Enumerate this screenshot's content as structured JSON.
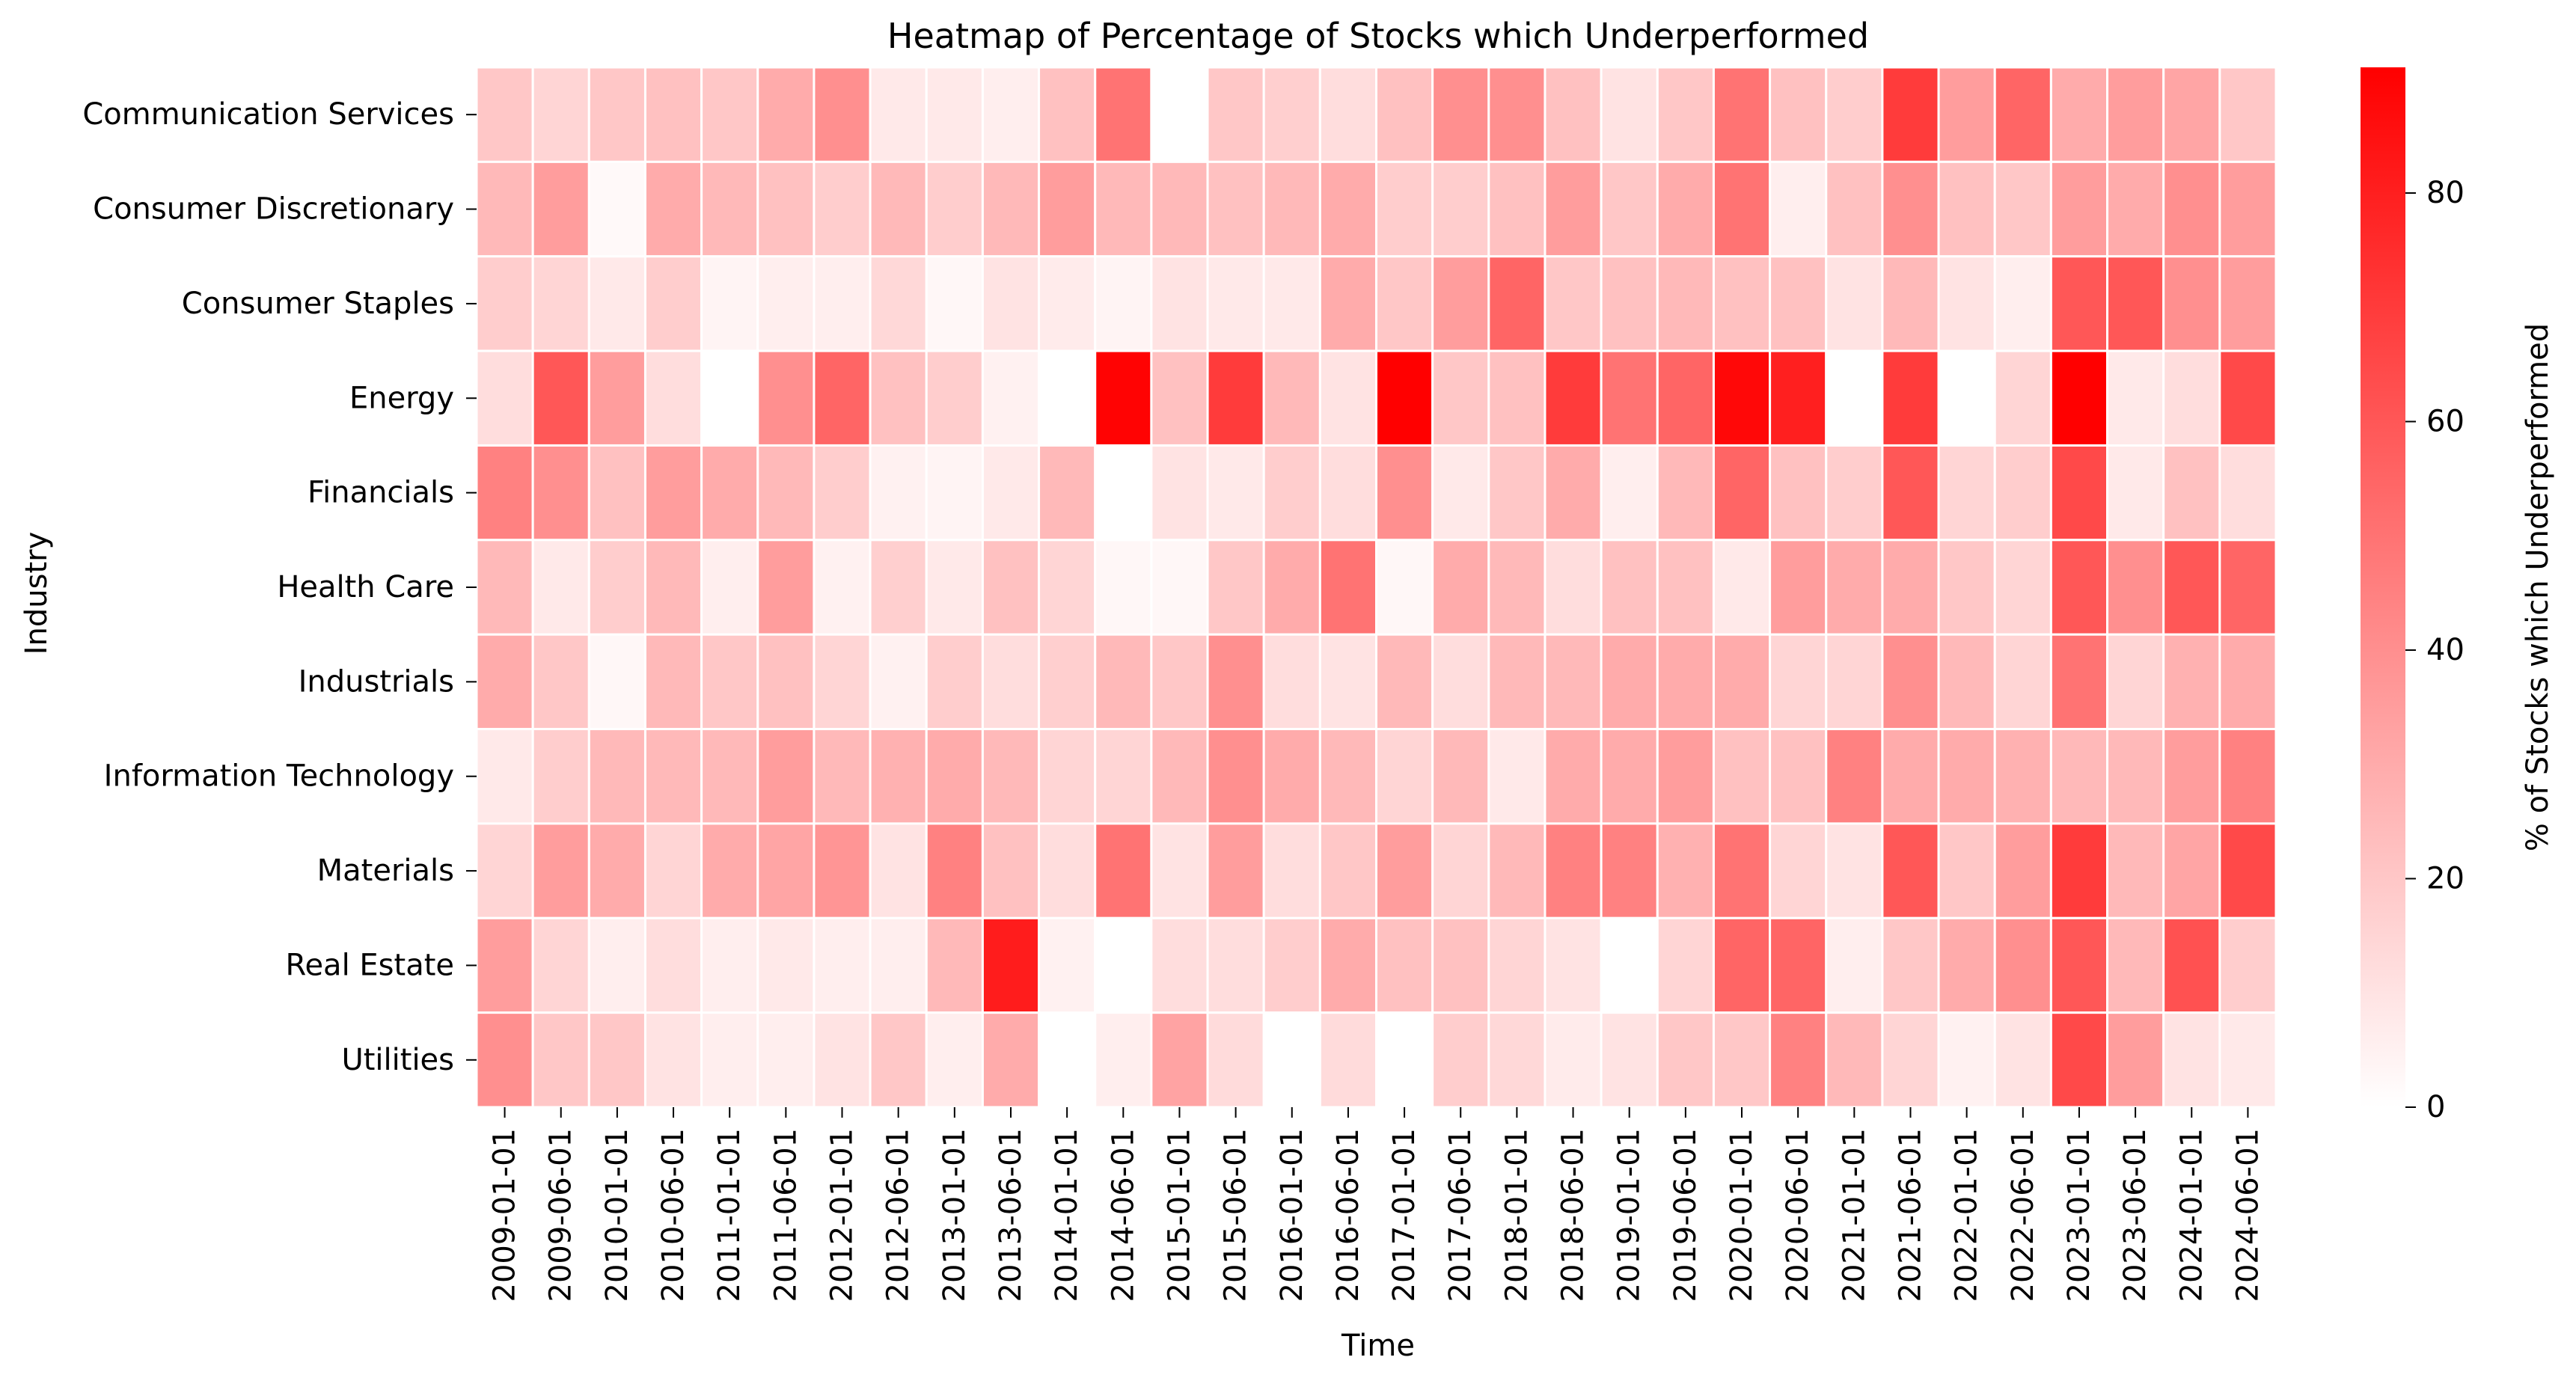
{
  "chart_data": {
    "type": "heatmap",
    "title": "Heatmap of Percentage of Stocks which Underperformed",
    "xlabel": "Time",
    "ylabel": "Industry",
    "colorbar_label": "% of Stocks which Underperformed",
    "colorbar_ticks": [
      0,
      20,
      40,
      60,
      80
    ],
    "vmin": 0,
    "vmax": 91,
    "colors": {
      "low": "#ffffff",
      "high": "#ff0000",
      "grid": "#ffffff",
      "text": "#000000"
    },
    "x": [
      "2009-01-01",
      "2009-06-01",
      "2010-01-01",
      "2010-06-01",
      "2011-01-01",
      "2011-06-01",
      "2012-01-01",
      "2012-06-01",
      "2013-01-01",
      "2013-06-01",
      "2014-01-01",
      "2014-06-01",
      "2015-01-01",
      "2015-06-01",
      "2016-01-01",
      "2016-06-01",
      "2017-01-01",
      "2017-06-01",
      "2018-01-01",
      "2018-06-01",
      "2019-01-01",
      "2019-06-01",
      "2020-01-01",
      "2020-06-01",
      "2021-01-01",
      "2021-06-01",
      "2022-01-01",
      "2022-06-01",
      "2023-01-01",
      "2023-06-01",
      "2024-01-01",
      "2024-06-01"
    ],
    "y": [
      "Communication Services",
      "Consumer Discretionary",
      "Consumer Staples",
      "Energy",
      "Financials",
      "Health Care",
      "Industrials",
      "Information Technology",
      "Materials",
      "Real Estate",
      "Utilities"
    ],
    "values": [
      [
        20,
        15,
        20,
        22,
        20,
        30,
        40,
        8,
        8,
        6,
        22,
        50,
        0,
        20,
        17,
        12,
        22,
        40,
        40,
        22,
        10,
        20,
        50,
        22,
        18,
        70,
        35,
        55,
        30,
        35,
        32,
        20
      ],
      [
        25,
        35,
        2,
        30,
        25,
        22,
        18,
        25,
        18,
        25,
        35,
        25,
        25,
        22,
        25,
        30,
        18,
        18,
        22,
        35,
        20,
        30,
        50,
        6,
        22,
        40,
        22,
        20,
        35,
        30,
        40,
        35
      ],
      [
        18,
        15,
        8,
        18,
        4,
        6,
        6,
        14,
        3,
        10,
        7,
        4,
        10,
        8,
        8,
        30,
        20,
        35,
        55,
        20,
        22,
        25,
        22,
        22,
        10,
        25,
        10,
        6,
        60,
        60,
        40,
        35
      ],
      [
        12,
        60,
        35,
        12,
        0,
        40,
        55,
        22,
        18,
        5,
        0,
        90,
        22,
        70,
        25,
        10,
        91,
        20,
        22,
        70,
        50,
        55,
        88,
        80,
        0,
        70,
        0,
        15,
        91,
        8,
        12,
        65
      ],
      [
        45,
        40,
        22,
        35,
        30,
        25,
        18,
        5,
        4,
        8,
        25,
        0,
        10,
        8,
        18,
        12,
        40,
        8,
        20,
        30,
        6,
        25,
        55,
        22,
        18,
        60,
        15,
        18,
        65,
        8,
        22,
        12
      ],
      [
        25,
        8,
        18,
        25,
        6,
        35,
        5,
        17,
        8,
        22,
        15,
        3,
        3,
        20,
        30,
        50,
        3,
        30,
        25,
        12,
        22,
        22,
        8,
        35,
        30,
        30,
        20,
        15,
        60,
        40,
        60,
        55
      ],
      [
        30,
        20,
        3,
        25,
        20,
        22,
        15,
        5,
        18,
        12,
        17,
        25,
        20,
        40,
        12,
        10,
        25,
        12,
        25,
        25,
        30,
        30,
        30,
        15,
        15,
        40,
        25,
        15,
        50,
        15,
        28,
        30
      ],
      [
        8,
        18,
        25,
        25,
        25,
        35,
        25,
        28,
        30,
        25,
        15,
        15,
        25,
        40,
        30,
        25,
        15,
        25,
        8,
        30,
        30,
        35,
        22,
        22,
        45,
        30,
        30,
        28,
        25,
        25,
        35,
        45
      ],
      [
        15,
        35,
        30,
        15,
        30,
        32,
        38,
        10,
        45,
        22,
        12,
        50,
        10,
        35,
        12,
        20,
        35,
        15,
        25,
        45,
        45,
        28,
        50,
        15,
        10,
        60,
        20,
        35,
        70,
        25,
        32,
        65
      ],
      [
        35,
        15,
        6,
        12,
        6,
        8,
        6,
        6,
        25,
        81,
        5,
        0,
        12,
        12,
        18,
        30,
        22,
        22,
        15,
        10,
        0,
        15,
        55,
        55,
        6,
        20,
        30,
        40,
        60,
        25,
        62,
        18
      ],
      [
        40,
        20,
        20,
        10,
        6,
        6,
        10,
        20,
        6,
        30,
        0,
        6,
        33,
        13,
        0,
        13,
        0,
        18,
        14,
        7,
        10,
        20,
        20,
        45,
        25,
        15,
        5,
        10,
        65,
        35,
        10,
        8
      ]
    ]
  }
}
